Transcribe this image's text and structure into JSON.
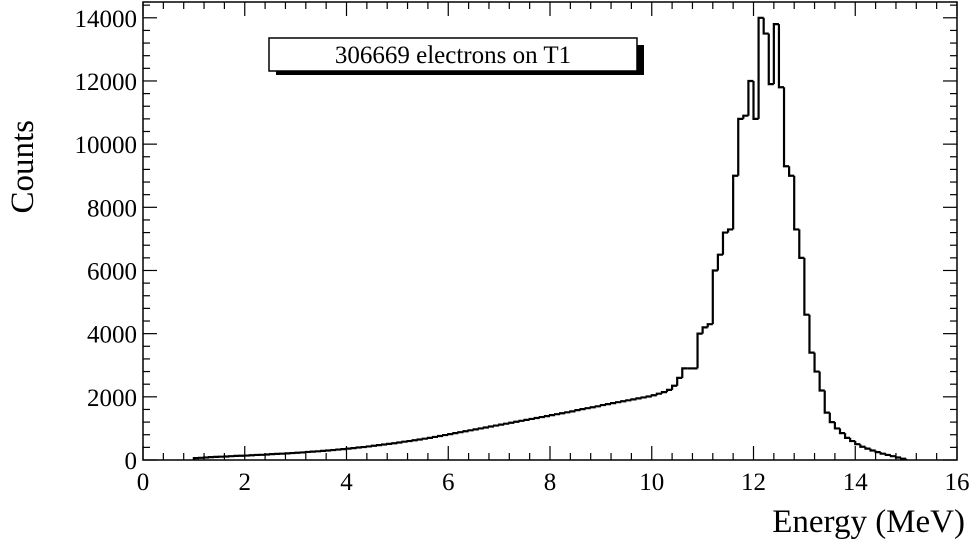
{
  "chart_data": {
    "type": "histogram",
    "title": "",
    "xlabel": "Energy (MeV)",
    "ylabel": "Counts",
    "xlim": [
      0,
      16
    ],
    "ylim": [
      0,
      14500
    ],
    "x_ticks": [
      0,
      2,
      4,
      6,
      8,
      10,
      12,
      14,
      16
    ],
    "y_ticks": [
      0,
      2000,
      4000,
      6000,
      8000,
      10000,
      12000,
      14000
    ],
    "x_tick_labels": [
      "0",
      "2",
      "4",
      "6",
      "8",
      "10",
      "12",
      "14",
      "16"
    ],
    "y_tick_labels": [
      "0",
      "2000",
      "4000",
      "6000",
      "8000",
      "10000",
      "12000",
      "14000"
    ],
    "legend": "306669 electrons on T1",
    "legend_position": "top-center",
    "grid": false,
    "bin_width": 0.1,
    "series": [
      {
        "name": "306669 electrons on T1",
        "bins": [
          {
            "x": 1.0,
            "y": 60
          },
          {
            "x": 1.1,
            "y": 70
          },
          {
            "x": 1.2,
            "y": 80
          },
          {
            "x": 1.3,
            "y": 90
          },
          {
            "x": 1.4,
            "y": 100
          },
          {
            "x": 1.5,
            "y": 105
          },
          {
            "x": 1.6,
            "y": 110
          },
          {
            "x": 1.7,
            "y": 120
          },
          {
            "x": 1.8,
            "y": 130
          },
          {
            "x": 1.9,
            "y": 135
          },
          {
            "x": 2.0,
            "y": 140
          },
          {
            "x": 2.1,
            "y": 150
          },
          {
            "x": 2.2,
            "y": 160
          },
          {
            "x": 2.3,
            "y": 165
          },
          {
            "x": 2.4,
            "y": 175
          },
          {
            "x": 2.5,
            "y": 185
          },
          {
            "x": 2.6,
            "y": 195
          },
          {
            "x": 2.7,
            "y": 200
          },
          {
            "x": 2.8,
            "y": 210
          },
          {
            "x": 2.9,
            "y": 220
          },
          {
            "x": 3.0,
            "y": 230
          },
          {
            "x": 3.1,
            "y": 240
          },
          {
            "x": 3.2,
            "y": 255
          },
          {
            "x": 3.3,
            "y": 265
          },
          {
            "x": 3.4,
            "y": 275
          },
          {
            "x": 3.5,
            "y": 290
          },
          {
            "x": 3.6,
            "y": 300
          },
          {
            "x": 3.7,
            "y": 315
          },
          {
            "x": 3.8,
            "y": 330
          },
          {
            "x": 3.9,
            "y": 345
          },
          {
            "x": 4.0,
            "y": 360
          },
          {
            "x": 4.1,
            "y": 375
          },
          {
            "x": 4.2,
            "y": 395
          },
          {
            "x": 4.3,
            "y": 410
          },
          {
            "x": 4.4,
            "y": 430
          },
          {
            "x": 4.5,
            "y": 450
          },
          {
            "x": 4.6,
            "y": 470
          },
          {
            "x": 4.7,
            "y": 490
          },
          {
            "x": 4.8,
            "y": 510
          },
          {
            "x": 4.9,
            "y": 530
          },
          {
            "x": 5.0,
            "y": 555
          },
          {
            "x": 5.1,
            "y": 580
          },
          {
            "x": 5.2,
            "y": 600
          },
          {
            "x": 5.3,
            "y": 625
          },
          {
            "x": 5.4,
            "y": 650
          },
          {
            "x": 5.5,
            "y": 675
          },
          {
            "x": 5.6,
            "y": 700
          },
          {
            "x": 5.7,
            "y": 730
          },
          {
            "x": 5.8,
            "y": 760
          },
          {
            "x": 5.9,
            "y": 790
          },
          {
            "x": 6.0,
            "y": 820
          },
          {
            "x": 6.1,
            "y": 850
          },
          {
            "x": 6.2,
            "y": 880
          },
          {
            "x": 6.3,
            "y": 910
          },
          {
            "x": 6.4,
            "y": 940
          },
          {
            "x": 6.5,
            "y": 970
          },
          {
            "x": 6.6,
            "y": 1000
          },
          {
            "x": 6.7,
            "y": 1030
          },
          {
            "x": 6.8,
            "y": 1060
          },
          {
            "x": 6.9,
            "y": 1090
          },
          {
            "x": 7.0,
            "y": 1120
          },
          {
            "x": 7.1,
            "y": 1150
          },
          {
            "x": 7.2,
            "y": 1180
          },
          {
            "x": 7.3,
            "y": 1210
          },
          {
            "x": 7.4,
            "y": 1240
          },
          {
            "x": 7.5,
            "y": 1270
          },
          {
            "x": 7.6,
            "y": 1300
          },
          {
            "x": 7.7,
            "y": 1330
          },
          {
            "x": 7.8,
            "y": 1360
          },
          {
            "x": 7.9,
            "y": 1390
          },
          {
            "x": 8.0,
            "y": 1420
          },
          {
            "x": 8.1,
            "y": 1450
          },
          {
            "x": 8.2,
            "y": 1480
          },
          {
            "x": 8.3,
            "y": 1510
          },
          {
            "x": 8.4,
            "y": 1540
          },
          {
            "x": 8.5,
            "y": 1580
          },
          {
            "x": 8.6,
            "y": 1610
          },
          {
            "x": 8.7,
            "y": 1640
          },
          {
            "x": 8.8,
            "y": 1670
          },
          {
            "x": 8.9,
            "y": 1700
          },
          {
            "x": 9.0,
            "y": 1740
          },
          {
            "x": 9.1,
            "y": 1770
          },
          {
            "x": 9.2,
            "y": 1800
          },
          {
            "x": 9.3,
            "y": 1830
          },
          {
            "x": 9.4,
            "y": 1860
          },
          {
            "x": 9.5,
            "y": 1890
          },
          {
            "x": 9.6,
            "y": 1920
          },
          {
            "x": 9.7,
            "y": 1950
          },
          {
            "x": 9.8,
            "y": 1980
          },
          {
            "x": 9.9,
            "y": 2010
          },
          {
            "x": 10.0,
            "y": 2050
          },
          {
            "x": 10.1,
            "y": 2100
          },
          {
            "x": 10.2,
            "y": 2150
          },
          {
            "x": 10.3,
            "y": 2220
          },
          {
            "x": 10.4,
            "y": 2350
          },
          {
            "x": 10.5,
            "y": 2600
          },
          {
            "x": 10.6,
            "y": 2900
          },
          {
            "x": 10.7,
            "y": 2900
          },
          {
            "x": 10.8,
            "y": 2900
          },
          {
            "x": 10.9,
            "y": 4000
          },
          {
            "x": 11.0,
            "y": 4200
          },
          {
            "x": 11.1,
            "y": 4300
          },
          {
            "x": 11.2,
            "y": 6000
          },
          {
            "x": 11.3,
            "y": 6500
          },
          {
            "x": 11.4,
            "y": 7200
          },
          {
            "x": 11.5,
            "y": 7300
          },
          {
            "x": 11.6,
            "y": 9000
          },
          {
            "x": 11.7,
            "y": 10800
          },
          {
            "x": 11.8,
            "y": 10900
          },
          {
            "x": 11.9,
            "y": 12000
          },
          {
            "x": 12.0,
            "y": 10800
          },
          {
            "x": 12.1,
            "y": 14000
          },
          {
            "x": 12.2,
            "y": 13500
          },
          {
            "x": 12.3,
            "y": 11900
          },
          {
            "x": 12.4,
            "y": 13800
          },
          {
            "x": 12.5,
            "y": 11800
          },
          {
            "x": 12.6,
            "y": 9300
          },
          {
            "x": 12.7,
            "y": 9000
          },
          {
            "x": 12.8,
            "y": 7300
          },
          {
            "x": 12.9,
            "y": 6400
          },
          {
            "x": 13.0,
            "y": 4600
          },
          {
            "x": 13.1,
            "y": 3400
          },
          {
            "x": 13.2,
            "y": 2800
          },
          {
            "x": 13.3,
            "y": 2200
          },
          {
            "x": 13.4,
            "y": 1500
          },
          {
            "x": 13.5,
            "y": 1200
          },
          {
            "x": 13.6,
            "y": 1000
          },
          {
            "x": 13.7,
            "y": 850
          },
          {
            "x": 13.8,
            "y": 700
          },
          {
            "x": 13.9,
            "y": 600
          },
          {
            "x": 14.0,
            "y": 500
          },
          {
            "x": 14.1,
            "y": 420
          },
          {
            "x": 14.2,
            "y": 360
          },
          {
            "x": 14.3,
            "y": 300
          },
          {
            "x": 14.4,
            "y": 250
          },
          {
            "x": 14.5,
            "y": 200
          },
          {
            "x": 14.6,
            "y": 160
          },
          {
            "x": 14.7,
            "y": 120
          },
          {
            "x": 14.8,
            "y": 80
          },
          {
            "x": 14.9,
            "y": 40
          }
        ]
      }
    ]
  }
}
